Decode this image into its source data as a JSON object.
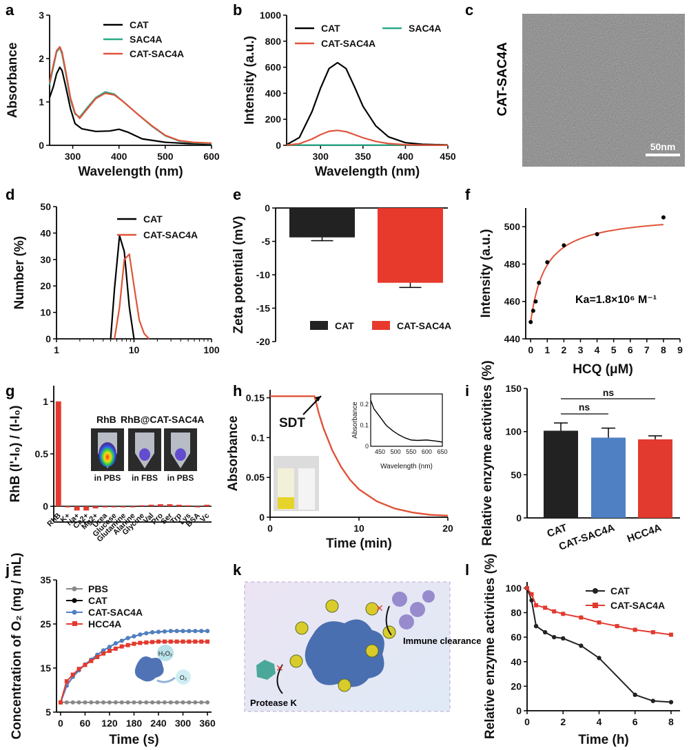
{
  "panel_labels": {
    "a": "a",
    "b": "b",
    "c": "c",
    "d": "d",
    "e": "e",
    "f": "f",
    "g": "g",
    "h": "h",
    "i": "i",
    "j": "j",
    "k": "k",
    "l": "l"
  },
  "colors": {
    "cat": "#000000",
    "sac4a": "#2aa987",
    "cat_sac4a": "#e0533a",
    "bar_cat": "#222222",
    "bar_catsac": "#e8392d",
    "blue": "#4f80c4",
    "red": "#e23a2f",
    "gray": "#888888"
  },
  "chart_data": [
    {
      "id": "a",
      "type": "line",
      "xlabel": "Wavelength (nm)",
      "ylabel": "Absorbance",
      "xlim": [
        250,
        600
      ],
      "ylim": [
        0,
        3
      ],
      "xticks": [
        300,
        400,
        500,
        600
      ],
      "yticks": [
        0,
        1,
        2,
        3
      ],
      "legend": [
        "CAT",
        "SAC4A",
        "CAT-SAC4A"
      ],
      "series": [
        {
          "name": "CAT",
          "x": [
            250,
            258,
            265,
            272,
            277,
            285,
            295,
            305,
            320,
            350,
            380,
            400,
            420,
            450,
            500,
            550,
            600
          ],
          "y": [
            1.1,
            1.35,
            1.65,
            1.8,
            1.72,
            1.35,
            0.85,
            0.5,
            0.38,
            0.32,
            0.33,
            0.37,
            0.3,
            0.15,
            0.07,
            0.04,
            0.03
          ]
        },
        {
          "name": "SAC4A",
          "x": [
            250,
            258,
            265,
            272,
            277,
            285,
            295,
            305,
            315,
            330,
            350,
            370,
            390,
            410,
            440,
            470,
            500,
            530,
            560,
            600
          ],
          "y": [
            1.4,
            1.8,
            2.15,
            2.25,
            2.1,
            1.65,
            1.05,
            0.72,
            0.65,
            0.85,
            1.1,
            1.23,
            1.18,
            1.0,
            0.72,
            0.45,
            0.22,
            0.1,
            0.06,
            0.04
          ]
        },
        {
          "name": "CAT-SAC4A",
          "x": [
            250,
            258,
            265,
            272,
            277,
            285,
            295,
            305,
            315,
            330,
            350,
            370,
            390,
            410,
            440,
            470,
            500,
            530,
            560,
            600
          ],
          "y": [
            1.45,
            1.85,
            2.18,
            2.27,
            2.15,
            1.7,
            1.1,
            0.75,
            0.62,
            0.82,
            1.08,
            1.2,
            1.16,
            1.0,
            0.72,
            0.46,
            0.23,
            0.11,
            0.07,
            0.05
          ]
        }
      ]
    },
    {
      "id": "b",
      "type": "line",
      "xlabel": "Wavelength (nm)",
      "ylabel": "Intensity (a.u.)",
      "xlim": [
        260,
        450
      ],
      "ylim": [
        0,
        1000
      ],
      "xticks": [
        300,
        350,
        400,
        450
      ],
      "yticks": [
        0,
        200,
        400,
        600,
        800,
        1000
      ],
      "legend": [
        "CAT",
        "SAC4A",
        "CAT-SAC4A"
      ],
      "series": [
        {
          "name": "CAT",
          "x": [
            260,
            275,
            290,
            300,
            310,
            320,
            330,
            340,
            350,
            365,
            380,
            400,
            420,
            450
          ],
          "y": [
            5,
            60,
            260,
            440,
            590,
            635,
            590,
            450,
            300,
            150,
            65,
            20,
            8,
            3
          ]
        },
        {
          "name": "SAC4A",
          "x": [
            260,
            450
          ],
          "y": [
            2,
            2
          ]
        },
        {
          "name": "CAT-SAC4A",
          "x": [
            260,
            275,
            290,
            300,
            310,
            320,
            330,
            340,
            350,
            365,
            380,
            400,
            420,
            450
          ],
          "y": [
            2,
            12,
            48,
            82,
            108,
            115,
            105,
            82,
            58,
            30,
            14,
            5,
            2,
            1
          ]
        }
      ]
    },
    {
      "id": "d",
      "type": "line",
      "xscale": "log",
      "xlabel": "",
      "ylabel": "Number (%)",
      "xlim": [
        1,
        100
      ],
      "ylim": [
        0,
        50
      ],
      "xticks": [
        1,
        10,
        100
      ],
      "yticks": [
        0,
        10,
        20,
        30,
        40,
        50
      ],
      "legend": [
        "CAT",
        "CAT-SAC4A"
      ],
      "series": [
        {
          "name": "CAT",
          "x": [
            5,
            5.6,
            6.5,
            7.5,
            8.7,
            10
          ],
          "y": [
            0,
            19,
            39,
            33,
            12,
            0
          ]
        },
        {
          "name": "CAT-SAC4A",
          "x": [
            5.6,
            6.5,
            7.5,
            8.7,
            10,
            11.7,
            13.5,
            15.6
          ],
          "y": [
            0,
            12,
            30,
            32,
            20,
            7,
            2,
            0
          ]
        }
      ]
    },
    {
      "id": "e",
      "type": "bar",
      "ylabel": "Zeta potential (mV)",
      "ylim": [
        -20,
        0
      ],
      "yticks": [
        0,
        -5,
        -10,
        -15,
        -20
      ],
      "categories": [
        "CAT",
        "CAT-SAC4A"
      ],
      "values": [
        -4.4,
        -11.2
      ],
      "errors": [
        0.5,
        0.7
      ],
      "legend": [
        "CAT",
        "CAT-SAC4A"
      ]
    },
    {
      "id": "f",
      "type": "scatter",
      "xlabel": "HCQ (μM)",
      "ylabel": "Intensity (a.u.)",
      "xlim": [
        -0.3,
        9
      ],
      "ylim": [
        440,
        510
      ],
      "xticks": [
        0,
        1,
        2,
        3,
        4,
        5,
        6,
        7,
        8,
        9
      ],
      "yticks": [
        440,
        460,
        480,
        500
      ],
      "x": [
        0,
        0.15,
        0.3,
        0.5,
        1,
        2,
        4,
        8
      ],
      "y": [
        449,
        455,
        460,
        470,
        481,
        490,
        496,
        505
      ],
      "fit_label": "Ka=1.8×10⁶ M⁻¹"
    },
    {
      "id": "g",
      "type": "bar",
      "ylabel": "RhB (I'-I₀) / (I-I₀)",
      "ylim": [
        -0.15,
        1.15
      ],
      "yticks": [
        0,
        0.5,
        1.0
      ],
      "categories": [
        "RhB",
        "K+",
        "Na+",
        "Ca2+",
        "Mg2+",
        "Urea",
        "Glucose",
        "Glutamine",
        "Alanine",
        "Glycine",
        "Val",
        "Pro",
        "Ser",
        "Trp",
        "Lys",
        "BSA",
        "Vc"
      ],
      "values": [
        1.0,
        0.0,
        -0.04,
        -0.04,
        -0.02,
        -0.01,
        0.0,
        0.0,
        0.0,
        0.01,
        0.015,
        0.02,
        0.02,
        0.015,
        0.01,
        0.0,
        0.015
      ],
      "inset_labels": {
        "title1": "RhB",
        "title2": "RhB@CAT-SAC4A",
        "t1": "in PBS",
        "t2": "in FBS",
        "t3": "in PBS"
      }
    },
    {
      "id": "h",
      "type": "line",
      "xlabel": "Time (min)",
      "ylabel": "Absorbance",
      "xlim": [
        0,
        20
      ],
      "ylim": [
        0,
        0.16
      ],
      "xticks": [
        0,
        10,
        20
      ],
      "yticks": [
        0.0,
        0.05,
        0.1,
        0.15
      ],
      "annotation": "SDT",
      "series": [
        {
          "name": "Absorbance",
          "x": [
            0,
            5,
            5.5,
            6,
            7,
            8,
            9,
            10,
            12,
            14,
            16,
            18,
            20
          ],
          "y": [
            0.152,
            0.152,
            0.13,
            0.112,
            0.084,
            0.063,
            0.047,
            0.035,
            0.02,
            0.011,
            0.006,
            0.003,
            0.002
          ]
        }
      ],
      "inset": {
        "xlabel": "Wavelength (nm)",
        "ylabel": "Absorbance",
        "xticks": [
          450,
          500,
          550,
          600,
          650
        ],
        "yticks": [
          0.0,
          0.1,
          0.2
        ],
        "x": [
          420,
          430,
          450,
          470,
          490,
          510,
          530,
          550,
          570,
          600,
          630,
          650
        ],
        "y": [
          0.22,
          0.18,
          0.14,
          0.1,
          0.075,
          0.055,
          0.04,
          0.03,
          0.028,
          0.03,
          0.025,
          0.02
        ]
      }
    },
    {
      "id": "i",
      "type": "bar",
      "ylabel": "Relative enzyme activities (%)",
      "ylim": [
        0,
        150
      ],
      "yticks": [
        0,
        50,
        100,
        150
      ],
      "categories": [
        "CAT",
        "CAT-SAC4A",
        "HCC4A"
      ],
      "values": [
        101,
        93,
        91
      ],
      "errors": [
        9,
        11,
        4
      ],
      "sig": [
        "ns",
        "ns"
      ]
    },
    {
      "id": "j",
      "type": "line",
      "xlabel": "Time (s)",
      "ylabel": "Concentration of O₂ (mg / mL)",
      "xlim": [
        -10,
        370
      ],
      "ylim": [
        5,
        35
      ],
      "xticks": [
        0,
        60,
        120,
        180,
        240,
        300,
        360
      ],
      "yticks": [
        5,
        15,
        25,
        35
      ],
      "legend": [
        "PBS",
        "CAT",
        "CAT-SAC4A",
        "HCC4A"
      ],
      "x": [
        0,
        15,
        30,
        45,
        60,
        75,
        90,
        105,
        120,
        135,
        150,
        165,
        180,
        195,
        210,
        225,
        240,
        255,
        270,
        285,
        300,
        315,
        330,
        345,
        360
      ],
      "series": [
        {
          "name": "PBS",
          "y": [
            7.2,
            7.2,
            7.2,
            7.2,
            7.2,
            7.2,
            7.2,
            7.2,
            7.2,
            7.2,
            7.2,
            7.2,
            7.2,
            7.2,
            7.2,
            7.2,
            7.2,
            7.2,
            7.2,
            7.2,
            7.2,
            7.2,
            7.2,
            7.2,
            7.2
          ]
        },
        {
          "name": "CAT",
          "y": [
            7.2,
            11,
            13,
            14.5,
            15.8,
            16.9,
            18,
            19,
            19.8,
            20.6,
            21.2,
            21.8,
            22.2,
            22.6,
            22.9,
            23.1,
            23.2,
            23.3,
            23.4,
            23.4,
            23.4,
            23.4,
            23.4,
            23.4,
            23.4
          ]
        },
        {
          "name": "CAT-SAC4A",
          "y": [
            7.2,
            11,
            13,
            14.5,
            15.8,
            16.9,
            18,
            19,
            19.8,
            20.6,
            21.2,
            21.8,
            22.2,
            22.6,
            22.9,
            23.1,
            23.2,
            23.3,
            23.4,
            23.4,
            23.4,
            23.4,
            23.4,
            23.4,
            23.4
          ]
        },
        {
          "name": "HCC4A",
          "y": [
            7.2,
            12,
            13.5,
            14.8,
            15.7,
            16.6,
            17.5,
            18.3,
            18.9,
            19.4,
            19.9,
            20.2,
            20.5,
            20.7,
            20.8,
            20.9,
            21.0,
            21.0,
            21.0,
            21.0,
            21.0,
            21.0,
            21.0,
            21.0,
            21.0
          ]
        }
      ],
      "inset_labels": {
        "h2o2": "H₂O₂",
        "o2": "O₂"
      }
    },
    {
      "id": "l",
      "type": "line",
      "xlabel": "Time (h)",
      "ylabel": "Relative enzyme activities (%)",
      "xlim": [
        0,
        8.5
      ],
      "ylim": [
        0,
        105
      ],
      "xticks": [
        0,
        2,
        4,
        6,
        8
      ],
      "yticks": [
        0,
        20,
        40,
        60,
        80,
        100
      ],
      "legend": [
        "CAT",
        "CAT-SAC4A"
      ],
      "series": [
        {
          "name": "CAT",
          "x": [
            0,
            0.25,
            0.5,
            1,
            1.5,
            2,
            3,
            4,
            6,
            7,
            8
          ],
          "y": [
            100,
            90,
            69,
            64,
            60,
            59,
            53,
            43,
            13,
            8,
            7
          ]
        },
        {
          "name": "CAT-SAC4A",
          "x": [
            0,
            0.25,
            0.5,
            1,
            1.5,
            2,
            3,
            4,
            5,
            6,
            7,
            8
          ],
          "y": [
            100,
            95,
            86,
            84,
            81,
            79,
            76,
            72,
            69,
            66,
            64,
            62
          ]
        }
      ]
    }
  ],
  "panel_c": {
    "side_label": "CAT-SAC4A",
    "scale_bar": "50nm"
  },
  "panel_k": {
    "protease": "Protease K",
    "immune": "Immune clearance"
  }
}
